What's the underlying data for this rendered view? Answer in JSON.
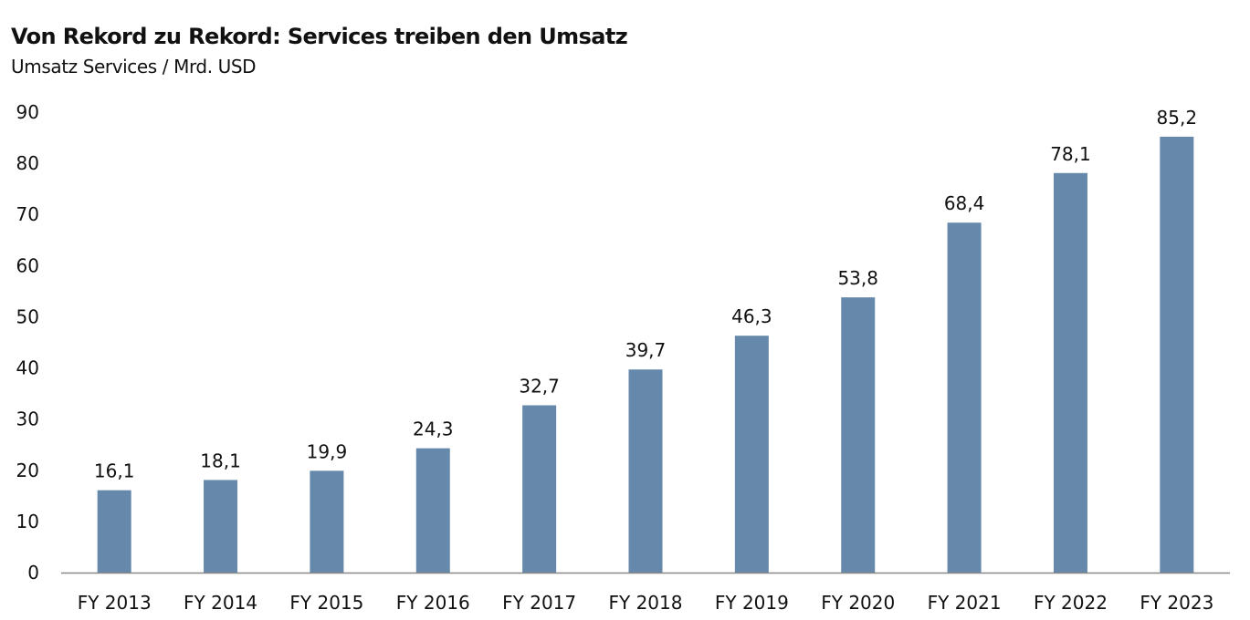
{
  "chart_data": {
    "type": "bar",
    "title": "Von Rekord zu Rekord: Services treiben den Umsatz",
    "subtitle": "Umsatz Services / Mrd. USD",
    "xlabel": "",
    "ylabel": "",
    "categories": [
      "FY 2013",
      "FY 2014",
      "FY 2015",
      "FY 2016",
      "FY 2017",
      "FY 2018",
      "FY 2019",
      "FY 2020",
      "FY 2021",
      "FY 2022",
      "FY 2023"
    ],
    "values": [
      16.1,
      18.1,
      19.9,
      24.3,
      32.7,
      39.7,
      46.3,
      53.8,
      68.4,
      78.1,
      85.2
    ],
    "data_labels": [
      "16,1",
      "18,1",
      "19,9",
      "24,3",
      "32,7",
      "39,7",
      "46,3",
      "53,8",
      "68,4",
      "78,1",
      "85,2"
    ],
    "ylim": [
      0,
      90
    ],
    "yticks": [
      0,
      10,
      20,
      30,
      40,
      50,
      60,
      70,
      80,
      90
    ],
    "grid": false,
    "legend": "none",
    "colors": {
      "bar": "#6689ab",
      "axis": "#888888",
      "text": "#111111"
    }
  }
}
